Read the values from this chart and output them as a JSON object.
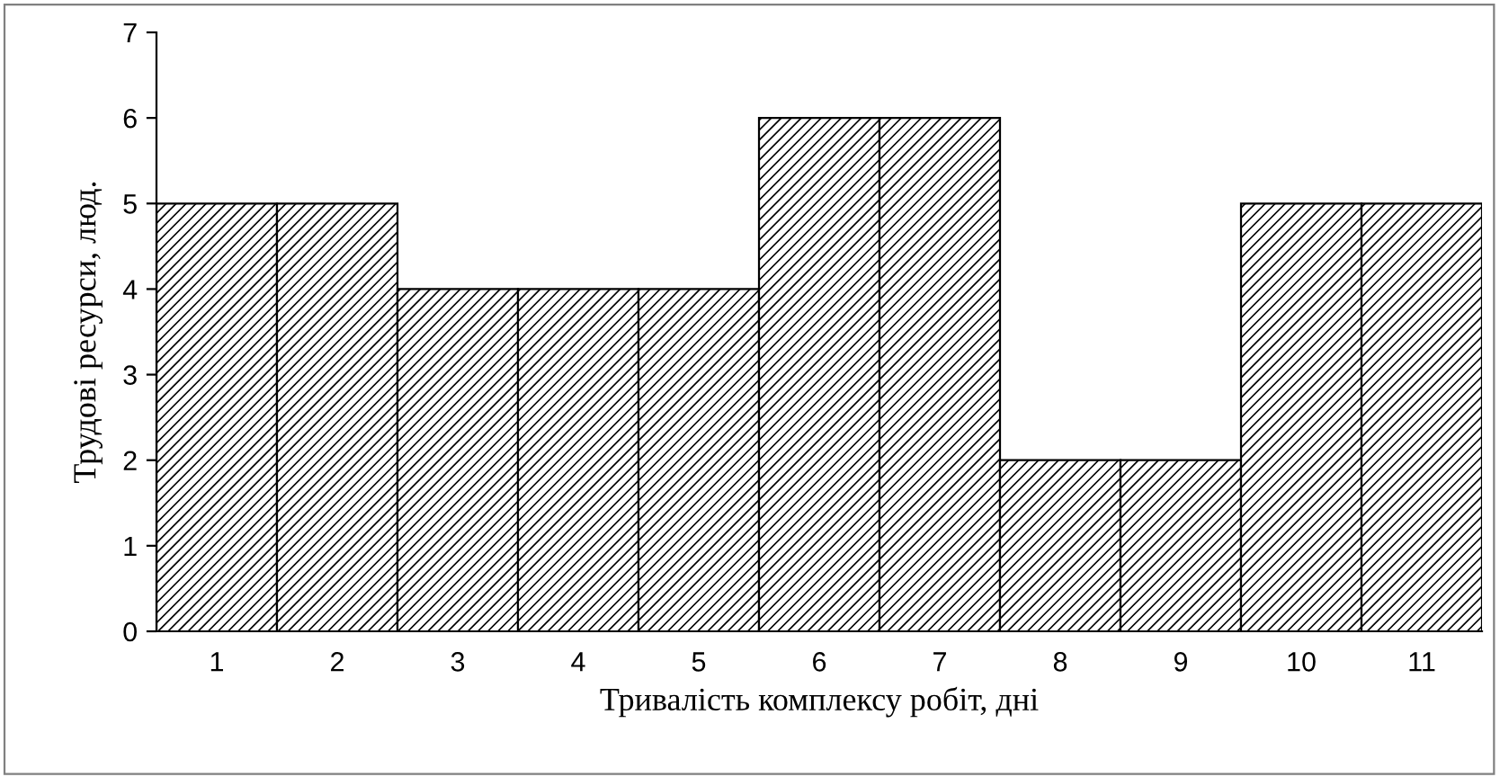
{
  "chart_data": {
    "type": "bar",
    "xlabel": "Тривалість комплексу робіт, дні",
    "ylabel": "Трудові ресурси, люд.",
    "categories": [
      "1",
      "2",
      "3",
      "4",
      "5",
      "6",
      "7",
      "8",
      "9",
      "10",
      "11"
    ],
    "values": [
      5,
      5,
      4,
      4,
      4,
      6,
      6,
      2,
      2,
      5,
      5
    ],
    "color": "#000000",
    "ylim": [
      0,
      7
    ],
    "yticks": [
      0,
      1,
      2,
      3,
      4,
      5,
      6,
      7
    ],
    "grid": false,
    "legend": false
  }
}
